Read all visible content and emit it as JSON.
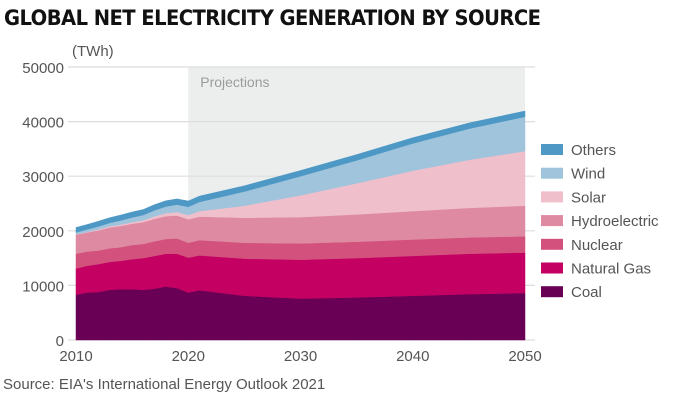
{
  "title": "GLOBAL NET ELECTRICITY GENERATION BY SOURCE",
  "source": "Source: EIA's International Energy Outlook 2021",
  "chart_data": {
    "type": "area",
    "stacked": true,
    "title": "GLOBAL NET ELECTRICITY GENERATION BY SOURCE",
    "ylabel": "(TWh)",
    "xlabel": "",
    "xlim": [
      2010,
      2050
    ],
    "ylim": [
      0,
      50000
    ],
    "xticks": [
      2010,
      2020,
      2030,
      2040,
      2050
    ],
    "xtick_labels": [
      "2010",
      "2020",
      "2030",
      "2040",
      "2050"
    ],
    "yticks": [
      0,
      10000,
      20000,
      30000,
      40000,
      50000
    ],
    "ytick_labels": [
      "0",
      "10000",
      "20000",
      "30000",
      "40000",
      "50000"
    ],
    "grid": "horizontal",
    "legend_position": "right",
    "annotation": {
      "label": "Projections",
      "x_start": 2020,
      "x_end": 2050,
      "color": "#eceeee"
    },
    "x": [
      2010,
      2011,
      2012,
      2013,
      2014,
      2015,
      2016,
      2017,
      2018,
      2019,
      2020,
      2021,
      2025,
      2030,
      2035,
      2040,
      2045,
      2050
    ],
    "series": [
      {
        "name": "Coal",
        "color": "#6a0055",
        "values": [
          8300,
          8700,
          8800,
          9200,
          9300,
          9300,
          9200,
          9400,
          9800,
          9500,
          8700,
          9100,
          8100,
          7600,
          7800,
          8100,
          8400,
          8600
        ]
      },
      {
        "name": "Natural Gas",
        "color": "#c40063",
        "values": [
          4800,
          4900,
          5100,
          5100,
          5200,
          5500,
          5800,
          6000,
          6000,
          6300,
          6400,
          6400,
          6800,
          7100,
          7200,
          7300,
          7400,
          7400
        ]
      },
      {
        "name": "Nuclear",
        "color": "#d2527d",
        "values": [
          2700,
          2600,
          2500,
          2500,
          2500,
          2600,
          2600,
          2700,
          2700,
          2800,
          2700,
          2800,
          2900,
          3000,
          3000,
          3000,
          3000,
          3000
        ]
      },
      {
        "name": "Hydroelectric",
        "color": "#de8aa2",
        "values": [
          3500,
          3500,
          3700,
          3800,
          3900,
          3900,
          4000,
          4100,
          4200,
          4200,
          4300,
          4300,
          4600,
          4800,
          5000,
          5200,
          5400,
          5600
        ]
      },
      {
        "name": "Solar",
        "color": "#f0bfcc",
        "values": [
          50,
          100,
          150,
          200,
          250,
          300,
          350,
          450,
          550,
          650,
          800,
          1000,
          2200,
          4000,
          5700,
          7400,
          8800,
          10000
        ]
      },
      {
        "name": "Wind",
        "color": "#9fc4dc",
        "values": [
          350,
          450,
          550,
          650,
          750,
          850,
          950,
          1100,
          1200,
          1350,
          1500,
          1700,
          2600,
          3500,
          4200,
          5000,
          5700,
          6300
        ]
      },
      {
        "name": "Others",
        "color": "#4d98c5",
        "values": [
          900,
          900,
          950,
          950,
          1000,
          1000,
          1000,
          1050,
          1050,
          1050,
          1050,
          1050,
          1050,
          1050,
          1050,
          1050,
          1050,
          1050
        ]
      }
    ]
  }
}
